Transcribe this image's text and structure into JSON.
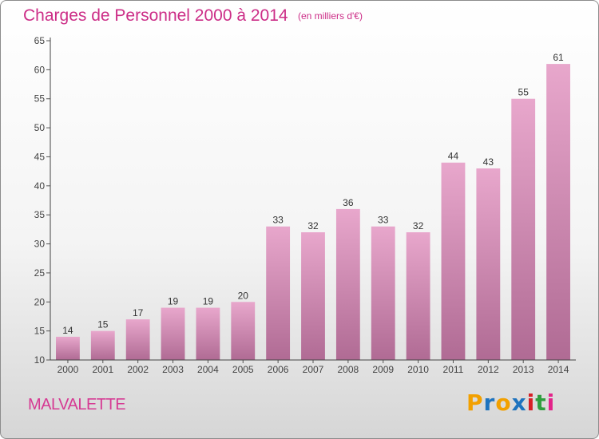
{
  "header": {
    "title": "Charges de Personnel 2000 à 2014",
    "subtitle": "(en milliers d'€)"
  },
  "footer": {
    "commune": "MALVALETTE",
    "logo": {
      "letters": [
        "P",
        "r",
        "o",
        "x",
        "i",
        "t",
        "i"
      ],
      "colors": [
        "#f2a000",
        "#1e73be",
        "#f2a000",
        "#1e73be",
        "#d61f26",
        "#2e9e3e",
        "#e3238a"
      ]
    }
  },
  "colors": {
    "accent": "#cc2d87",
    "bar_top": "#e8a7cc",
    "bar_bottom": "#b06b94"
  },
  "chart_data": {
    "type": "bar",
    "title": "Charges de Personnel 2000 à 2014",
    "subtitle": "(en milliers d'€)",
    "xlabel": "",
    "ylabel": "",
    "categories": [
      "2000",
      "2001",
      "2002",
      "2003",
      "2004",
      "2005",
      "2006",
      "2007",
      "2008",
      "2009",
      "2010",
      "2011",
      "2012",
      "2013",
      "2014"
    ],
    "values": [
      14,
      15,
      17,
      19,
      19,
      20,
      33,
      32,
      36,
      33,
      32,
      44,
      43,
      55,
      61
    ],
    "ylim": [
      10,
      65
    ],
    "yticks": [
      10,
      15,
      20,
      25,
      30,
      35,
      40,
      45,
      50,
      55,
      60,
      65
    ],
    "grid": false,
    "legend": "none",
    "data_labels": true
  }
}
